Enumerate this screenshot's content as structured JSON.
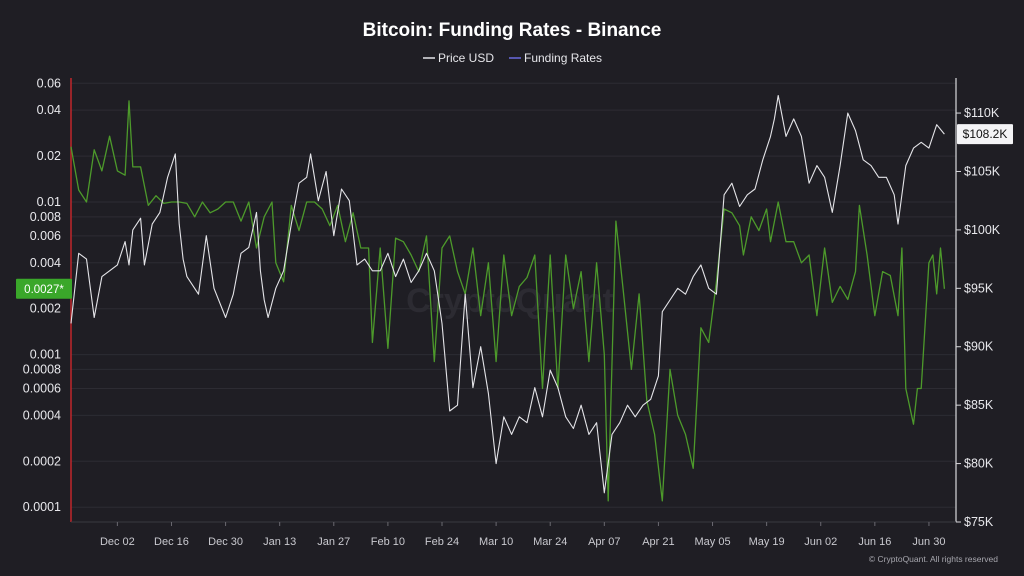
{
  "watermark": "CryptoQuant",
  "credit": "© CryptoQuant. All rights reserved",
  "chart_data": {
    "type": "line",
    "title": "Bitcoin: Funding Rates - Binance",
    "legend_position": "top-center",
    "x_ticks": [
      "Dec 02",
      "Dec 16",
      "Dec 30",
      "Jan 13",
      "Jan 27",
      "Feb 10",
      "Feb 24",
      "Mar 10",
      "Mar 24",
      "Apr 07",
      "Apr 21",
      "May 05",
      "May 19",
      "Jun 02",
      "Jun 16",
      "Jun 30"
    ],
    "left_axis": {
      "scale": "log",
      "range": [
        8e-05,
        0.065
      ],
      "ticks": [
        0.06,
        0.04,
        0.02,
        0.01,
        0.008,
        0.006,
        0.004,
        0.002,
        0.001,
        0.0008,
        0.0006,
        0.0004,
        0.0002,
        0.0001
      ],
      "tick_labels": [
        "0.06",
        "0.04",
        "0.02",
        "0.01",
        "0.008",
        "0.006",
        "0.004",
        "0.002",
        "0.001",
        "0.0008",
        "0.0006",
        "0.0004",
        "0.0002",
        "0.0001"
      ]
    },
    "right_axis": {
      "scale": "linear",
      "range": [
        75000,
        113000
      ],
      "ticks": [
        75000,
        80000,
        85000,
        90000,
        95000,
        100000,
        105000,
        110000
      ],
      "tick_labels": [
        "$75K",
        "$80K",
        "$85K",
        "$90K",
        "$95K",
        "$100K",
        "$105K",
        "$110K"
      ]
    },
    "current_values": {
      "funding_label": "0.0027*",
      "funding_value": 0.0027,
      "price_label": "$108.2K",
      "price_value": 108200
    },
    "series": [
      {
        "name": "Price USD",
        "color": "#e4e4e8",
        "axis": "right",
        "points": [
          [
            "Nov 20",
            92000
          ],
          [
            "Nov 22",
            98000
          ],
          [
            "Nov 24",
            97500
          ],
          [
            "Nov 26",
            92500
          ],
          [
            "Nov 28",
            96000
          ],
          [
            "Nov 30",
            96500
          ],
          [
            "Dec 02",
            97000
          ],
          [
            "Dec 04",
            99000
          ],
          [
            "Dec 05",
            97000
          ],
          [
            "Dec 06",
            100000
          ],
          [
            "Dec 08",
            101000
          ],
          [
            "Dec 09",
            97000
          ],
          [
            "Dec 11",
            100500
          ],
          [
            "Dec 13",
            101500
          ],
          [
            "Dec 15",
            104500
          ],
          [
            "Dec 17",
            106500
          ],
          [
            "Dec 18",
            100500
          ],
          [
            "Dec 19",
            97500
          ],
          [
            "Dec 20",
            96000
          ],
          [
            "Dec 23",
            94500
          ],
          [
            "Dec 25",
            99500
          ],
          [
            "Dec 27",
            95000
          ],
          [
            "Dec 30",
            92500
          ],
          [
            "Jan 01",
            94500
          ],
          [
            "Jan 03",
            98000
          ],
          [
            "Jan 05",
            98500
          ],
          [
            "Jan 07",
            101500
          ],
          [
            "Jan 08",
            96500
          ],
          [
            "Jan 09",
            94000
          ],
          [
            "Jan 10",
            92500
          ],
          [
            "Jan 12",
            95000
          ],
          [
            "Jan 14",
            96500
          ],
          [
            "Jan 16",
            100500
          ],
          [
            "Jan 18",
            104000
          ],
          [
            "Jan 20",
            104500
          ],
          [
            "Jan 21",
            106500
          ],
          [
            "Jan 23",
            102500
          ],
          [
            "Jan 25",
            105000
          ],
          [
            "Jan 27",
            99500
          ],
          [
            "Jan 29",
            103500
          ],
          [
            "Jan 31",
            102500
          ],
          [
            "Feb 02",
            97000
          ],
          [
            "Feb 04",
            97500
          ],
          [
            "Feb 06",
            96500
          ],
          [
            "Feb 08",
            96500
          ],
          [
            "Feb 10",
            98000
          ],
          [
            "Feb 12",
            96000
          ],
          [
            "Feb 14",
            97500
          ],
          [
            "Feb 16",
            95500
          ],
          [
            "Feb 18",
            96500
          ],
          [
            "Feb 20",
            98000
          ],
          [
            "Feb 22",
            96500
          ],
          [
            "Feb 24",
            92000
          ],
          [
            "Feb 26",
            84500
          ],
          [
            "Feb 28",
            85000
          ],
          [
            "Mar 02",
            94500
          ],
          [
            "Mar 04",
            86500
          ],
          [
            "Mar 06",
            90000
          ],
          [
            "Mar 08",
            86000
          ],
          [
            "Mar 10",
            80000
          ],
          [
            "Mar 12",
            84000
          ],
          [
            "Mar 14",
            82500
          ],
          [
            "Mar 16",
            84000
          ],
          [
            "Mar 18",
            83500
          ],
          [
            "Mar 20",
            86500
          ],
          [
            "Mar 22",
            84000
          ],
          [
            "Mar 24",
            88000
          ],
          [
            "Mar 26",
            86500
          ],
          [
            "Mar 28",
            84000
          ],
          [
            "Mar 30",
            83000
          ],
          [
            "Apr 01",
            85000
          ],
          [
            "Apr 03",
            82500
          ],
          [
            "Apr 05",
            83500
          ],
          [
            "Apr 07",
            77500
          ],
          [
            "Apr 09",
            82500
          ],
          [
            "Apr 11",
            83500
          ],
          [
            "Apr 13",
            85000
          ],
          [
            "Apr 15",
            84000
          ],
          [
            "Apr 17",
            85000
          ],
          [
            "Apr 19",
            85500
          ],
          [
            "Apr 21",
            87500
          ],
          [
            "Apr 22",
            93000
          ],
          [
            "Apr 24",
            94000
          ],
          [
            "Apr 26",
            95000
          ],
          [
            "Apr 28",
            94500
          ],
          [
            "Apr 30",
            96000
          ],
          [
            "May 02",
            97000
          ],
          [
            "May 04",
            95000
          ],
          [
            "May 06",
            94500
          ],
          [
            "May 08",
            103000
          ],
          [
            "May 10",
            104000
          ],
          [
            "May 12",
            102000
          ],
          [
            "May 14",
            103000
          ],
          [
            "May 16",
            103500
          ],
          [
            "May 18",
            106000
          ],
          [
            "May 20",
            108000
          ],
          [
            "May 21",
            109500
          ],
          [
            "May 22",
            111500
          ],
          [
            "May 24",
            108000
          ],
          [
            "May 26",
            109500
          ],
          [
            "May 28",
            108000
          ],
          [
            "May 30",
            104000
          ],
          [
            "Jun 01",
            105500
          ],
          [
            "Jun 03",
            104500
          ],
          [
            "Jun 05",
            101500
          ],
          [
            "Jun 07",
            105500
          ],
          [
            "Jun 09",
            110000
          ],
          [
            "Jun 11",
            108500
          ],
          [
            "Jun 13",
            106000
          ],
          [
            "Jun 15",
            105500
          ],
          [
            "Jun 17",
            104500
          ],
          [
            "Jun 19",
            104500
          ],
          [
            "Jun 21",
            103000
          ],
          [
            "Jun 22",
            100500
          ],
          [
            "Jun 24",
            105500
          ],
          [
            "Jun 26",
            107000
          ],
          [
            "Jun 28",
            107500
          ],
          [
            "Jun 30",
            107000
          ],
          [
            "Jul 02",
            109000
          ],
          [
            "Jul 04",
            108200
          ]
        ]
      },
      {
        "name": "Funding Rates",
        "color": "#4d9a2b",
        "legend_color": "#6a6adf",
        "axis": "left",
        "points": [
          [
            "Nov 20",
            0.023
          ],
          [
            "Nov 22",
            0.012
          ],
          [
            "Nov 24",
            0.01
          ],
          [
            "Nov 26",
            0.022
          ],
          [
            "Nov 28",
            0.016
          ],
          [
            "Nov 30",
            0.027
          ],
          [
            "Dec 02",
            0.016
          ],
          [
            "Dec 04",
            0.015
          ],
          [
            "Dec 05",
            0.046
          ],
          [
            "Dec 06",
            0.017
          ],
          [
            "Dec 08",
            0.017
          ],
          [
            "Dec 10",
            0.0095
          ],
          [
            "Dec 12",
            0.011
          ],
          [
            "Dec 14",
            0.0098
          ],
          [
            "Dec 16",
            0.01
          ],
          [
            "Dec 18",
            0.01
          ],
          [
            "Dec 20",
            0.0098
          ],
          [
            "Dec 22",
            0.008
          ],
          [
            "Dec 24",
            0.01
          ],
          [
            "Dec 26",
            0.0085
          ],
          [
            "Dec 28",
            0.009
          ],
          [
            "Dec 30",
            0.01
          ],
          [
            "Jan 01",
            0.01
          ],
          [
            "Jan 03",
            0.0075
          ],
          [
            "Jan 05",
            0.01
          ],
          [
            "Jan 07",
            0.005
          ],
          [
            "Jan 09",
            0.008
          ],
          [
            "Jan 11",
            0.01
          ],
          [
            "Jan 12",
            0.004
          ],
          [
            "Jan 14",
            0.003
          ],
          [
            "Jan 16",
            0.0095
          ],
          [
            "Jan 18",
            0.0065
          ],
          [
            "Jan 20",
            0.01
          ],
          [
            "Jan 22",
            0.01
          ],
          [
            "Jan 24",
            0.009
          ],
          [
            "Jan 26",
            0.007
          ],
          [
            "Jan 28",
            0.0095
          ],
          [
            "Jan 30",
            0.0055
          ],
          [
            "Feb 01",
            0.0085
          ],
          [
            "Feb 03",
            0.005
          ],
          [
            "Feb 05",
            0.005
          ],
          [
            "Feb 06",
            0.0012
          ],
          [
            "Feb 08",
            0.005
          ],
          [
            "Feb 10",
            0.0011
          ],
          [
            "Feb 12",
            0.0058
          ],
          [
            "Feb 14",
            0.0055
          ],
          [
            "Feb 16",
            0.0045
          ],
          [
            "Feb 18",
            0.0035
          ],
          [
            "Feb 20",
            0.006
          ],
          [
            "Feb 22",
            0.0009
          ],
          [
            "Feb 24",
            0.005
          ],
          [
            "Feb 26",
            0.006
          ],
          [
            "Feb 28",
            0.0035
          ],
          [
            "Mar 02",
            0.0025
          ],
          [
            "Mar 04",
            0.005
          ],
          [
            "Mar 06",
            0.0018
          ],
          [
            "Mar 08",
            0.004
          ],
          [
            "Mar 10",
            0.0009
          ],
          [
            "Mar 12",
            0.0045
          ],
          [
            "Mar 14",
            0.0018
          ],
          [
            "Mar 16",
            0.0028
          ],
          [
            "Mar 18",
            0.0032
          ],
          [
            "Mar 20",
            0.0045
          ],
          [
            "Mar 22",
            0.0006
          ],
          [
            "Mar 24",
            0.0045
          ],
          [
            "Mar 26",
            0.0006
          ],
          [
            "Mar 28",
            0.0045
          ],
          [
            "Mar 30",
            0.002
          ],
          [
            "Apr 01",
            0.0035
          ],
          [
            "Apr 03",
            0.0009
          ],
          [
            "Apr 05",
            0.004
          ],
          [
            "Apr 07",
            0.001
          ],
          [
            "Apr 08",
            0.00011
          ],
          [
            "Apr 10",
            0.0075
          ],
          [
            "Apr 12",
            0.0025
          ],
          [
            "Apr 14",
            0.0008
          ],
          [
            "Apr 16",
            0.0025
          ],
          [
            "Apr 18",
            0.0005
          ],
          [
            "Apr 20",
            0.0003
          ],
          [
            "Apr 22",
            0.00011
          ],
          [
            "Apr 24",
            0.0008
          ],
          [
            "Apr 26",
            0.0004
          ],
          [
            "Apr 28",
            0.0003
          ],
          [
            "Apr 30",
            0.00018
          ],
          [
            "May 02",
            0.0015
          ],
          [
            "May 04",
            0.0012
          ],
          [
            "May 06",
            0.003
          ],
          [
            "May 08",
            0.009
          ],
          [
            "May 10",
            0.0085
          ],
          [
            "May 12",
            0.007
          ],
          [
            "May 13",
            0.0045
          ],
          [
            "May 15",
            0.008
          ],
          [
            "May 17",
            0.0065
          ],
          [
            "May 19",
            0.009
          ],
          [
            "May 20",
            0.0055
          ],
          [
            "May 22",
            0.01
          ],
          [
            "May 24",
            0.0055
          ],
          [
            "May 26",
            0.0055
          ],
          [
            "May 28",
            0.004
          ],
          [
            "May 30",
            0.0045
          ],
          [
            "Jun 01",
            0.0018
          ],
          [
            "Jun 03",
            0.005
          ],
          [
            "Jun 05",
            0.0022
          ],
          [
            "Jun 07",
            0.0028
          ],
          [
            "Jun 09",
            0.0023
          ],
          [
            "Jun 11",
            0.0035
          ],
          [
            "Jun 12",
            0.0095
          ],
          [
            "Jun 14",
            0.0045
          ],
          [
            "Jun 16",
            0.0018
          ],
          [
            "Jun 18",
            0.0035
          ],
          [
            "Jun 20",
            0.0033
          ],
          [
            "Jun 22",
            0.0018
          ],
          [
            "Jun 23",
            0.005
          ],
          [
            "Jun 24",
            0.0006
          ],
          [
            "Jun 26",
            0.00035
          ],
          [
            "Jun 27",
            0.0006
          ],
          [
            "Jun 28",
            0.0006
          ],
          [
            "Jun 30",
            0.004
          ],
          [
            "Jul 01",
            0.0045
          ],
          [
            "Jul 02",
            0.0025
          ],
          [
            "Jul 03",
            0.005
          ],
          [
            "Jul 04",
            0.0027
          ]
        ]
      }
    ]
  }
}
